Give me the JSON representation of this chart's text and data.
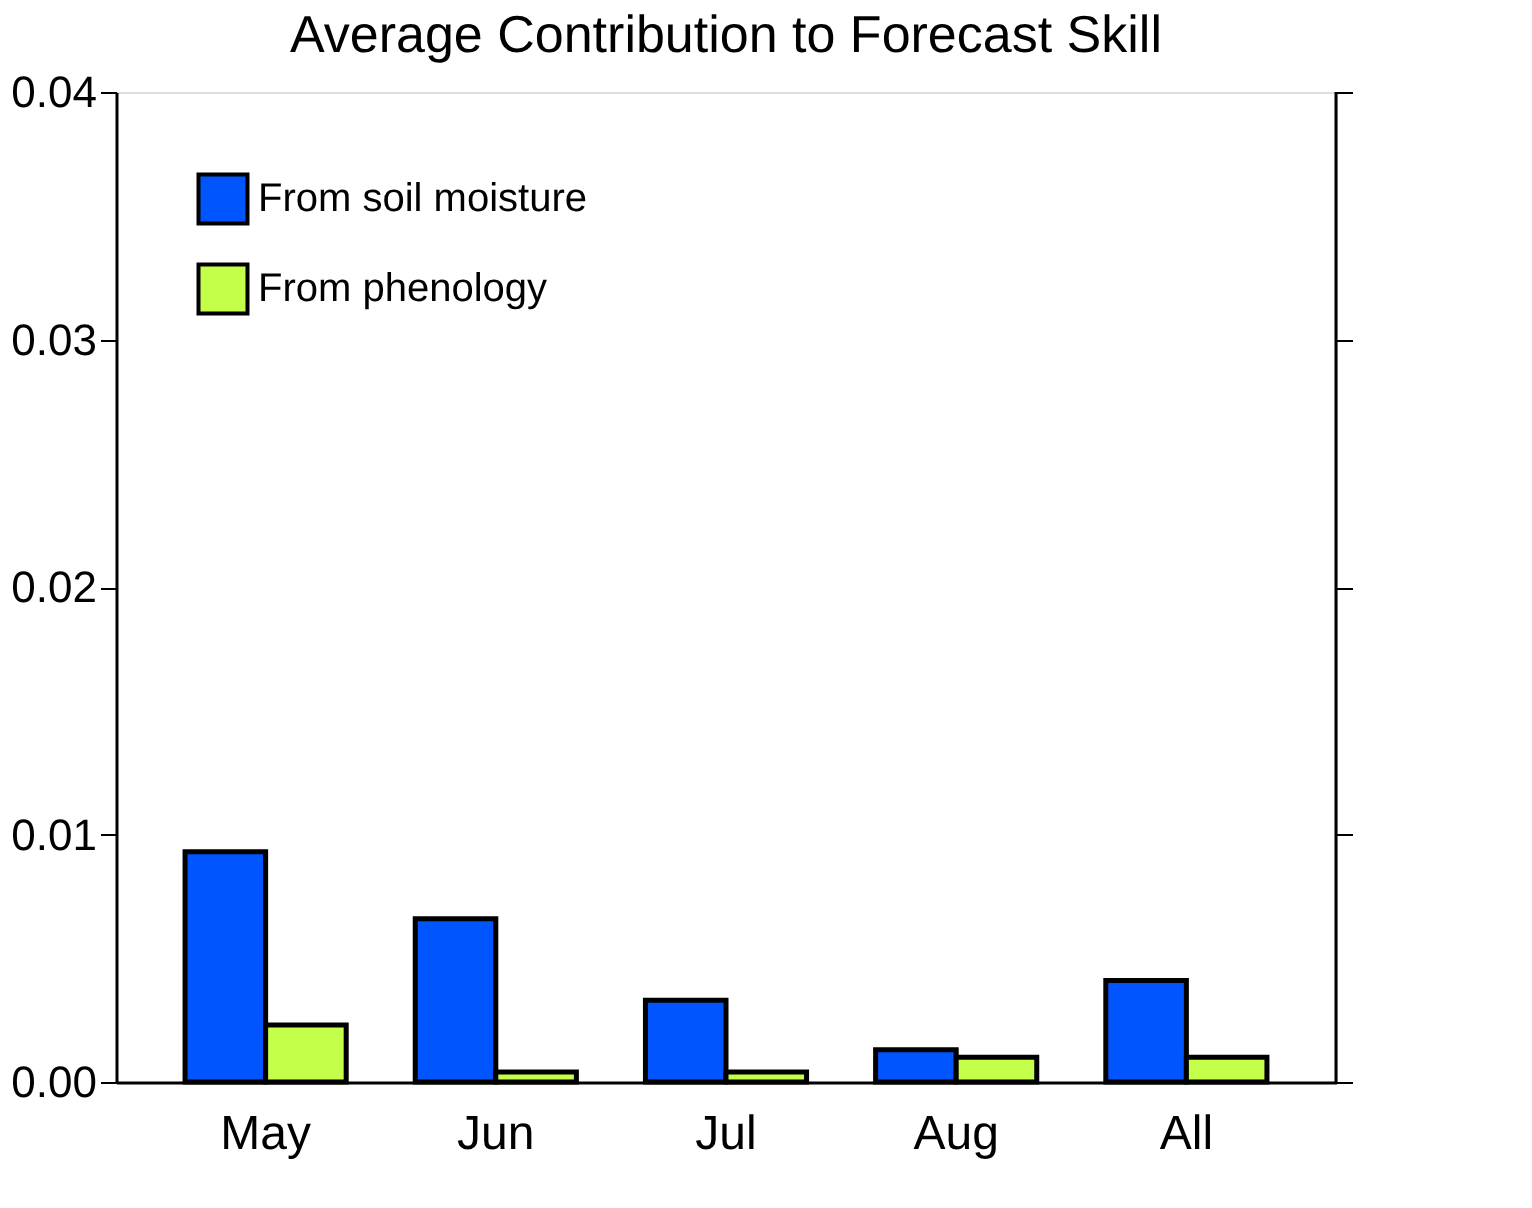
{
  "chart_data": {
    "type": "bar",
    "title": "Average Contribution to Forecast Skill",
    "categories": [
      "May",
      "Jun",
      "Jul",
      "Aug",
      "All"
    ],
    "series": [
      {
        "name": "From soil moisture",
        "color": "#0055ff",
        "values": [
          0.0093,
          0.0066,
          0.0033,
          0.0013,
          0.0041
        ]
      },
      {
        "name": "From phenology",
        "color": "#c4ff4a",
        "values": [
          0.0023,
          0.0004,
          0.0004,
          0.001,
          0.001
        ]
      }
    ],
    "ylim": [
      0,
      0.04
    ],
    "yticks": [
      {
        "value": 0,
        "label": "0.00"
      },
      {
        "value": 0.01,
        "label": "0.01"
      },
      {
        "value": 0.02,
        "label": "0.02"
      },
      {
        "value": 0.03,
        "label": "0.03"
      },
      {
        "value": 0.04,
        "label": "0.04"
      }
    ],
    "grid": false,
    "legend": "top left"
  }
}
